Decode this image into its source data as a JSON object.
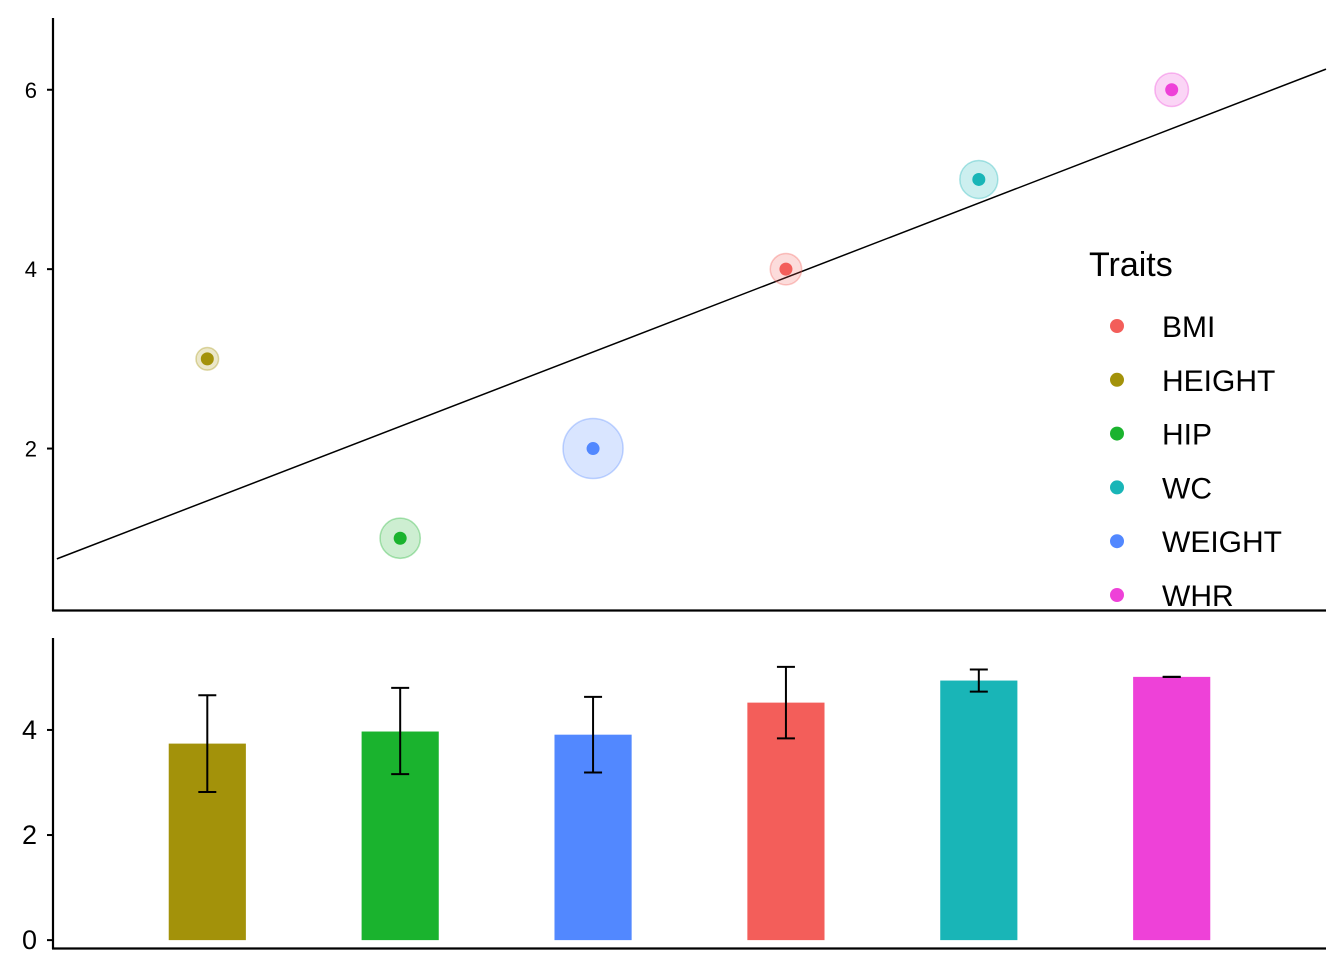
{
  "chart_data": [
    {
      "type": "scatter",
      "title": "",
      "xlabel": "",
      "ylabel": "",
      "ylim": [
        0.2,
        6.8
      ],
      "yticks": [
        2,
        4,
        6
      ],
      "grid": false,
      "legend": {
        "title": "Traits",
        "position": "right"
      },
      "points": [
        {
          "trait": "HEIGHT",
          "x": 1,
          "y": 3,
          "size": 0.15,
          "color": "#A3920A"
        },
        {
          "trait": "HIP",
          "x": 2,
          "y": 1,
          "size": 0.55,
          "color": "#1AB32E"
        },
        {
          "trait": "WEIGHT",
          "x": 3,
          "y": 2,
          "size": 1.0,
          "color": "#5288FF"
        },
        {
          "trait": "BMI",
          "x": 4,
          "y": 4,
          "size": 0.35,
          "color": "#F35E5A"
        },
        {
          "trait": "WC",
          "x": 5,
          "y": 5,
          "size": 0.5,
          "color": "#19B5B7"
        },
        {
          "trait": "WHR",
          "x": 6,
          "y": 6,
          "size": 0.4,
          "color": "#EE41D8"
        }
      ],
      "trend_line": {
        "x": [
          0.22,
          6.8
        ],
        "y": [
          0.77,
          6.23
        ]
      },
      "legend_entries": [
        {
          "label": "BMI",
          "color": "#F35E5A"
        },
        {
          "label": "HEIGHT",
          "color": "#A3920A"
        },
        {
          "label": "HIP",
          "color": "#1AB32E"
        },
        {
          "label": "WC",
          "color": "#19B5B7"
        },
        {
          "label": "WEIGHT",
          "color": "#5288FF"
        },
        {
          "label": "WHR",
          "color": "#EE41D8"
        }
      ]
    },
    {
      "type": "bar",
      "title": "",
      "xlabel": "",
      "ylabel": "",
      "ylim": [
        -0.15,
        5.75
      ],
      "yticks": [
        0,
        2,
        4
      ],
      "grid": false,
      "categories": [
        "HEIGHT",
        "HIP",
        "WEIGHT",
        "BMI",
        "WC",
        "WHR"
      ],
      "values": [
        3.74,
        3.97,
        3.91,
        4.52,
        4.94,
        5.01
      ],
      "error_low": [
        2.82,
        3.16,
        3.19,
        3.84,
        4.73,
        5.01
      ],
      "error_high": [
        4.66,
        4.8,
        4.63,
        5.2,
        5.15,
        5.01
      ],
      "colors": [
        "#A3920A",
        "#1AB32E",
        "#5288FF",
        "#F35E5A",
        "#19B5B7",
        "#EE41D8"
      ]
    }
  ]
}
